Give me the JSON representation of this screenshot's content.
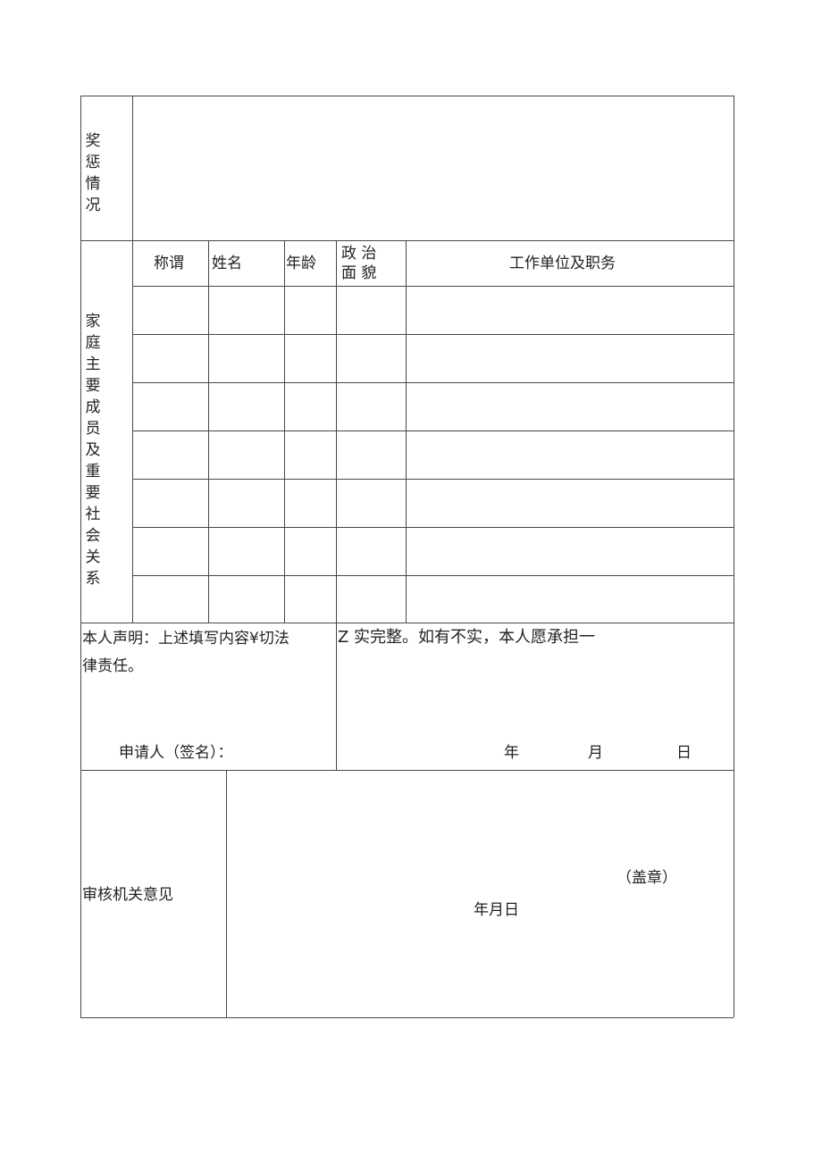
{
  "rewards": {
    "label": "奖惩情况"
  },
  "family": {
    "label": "家庭主要成员及重要社会关系",
    "headers": [
      "称谓",
      "姓名",
      "年龄",
      "政 治",
      "面 貌",
      "工作单位及职务"
    ],
    "rows": 7
  },
  "declaration": {
    "line1_left": "本人声明：上述填写内容¥切法",
    "line1_right": "Z 实完整。如有不实，本人愿承担一",
    "line2": "律责任。",
    "signature": "申请人（签名）：",
    "year": "年",
    "month": "月",
    "day": "日"
  },
  "review": {
    "label": "审核机关意见",
    "seal": "（盖章）",
    "date": "年月日"
  }
}
